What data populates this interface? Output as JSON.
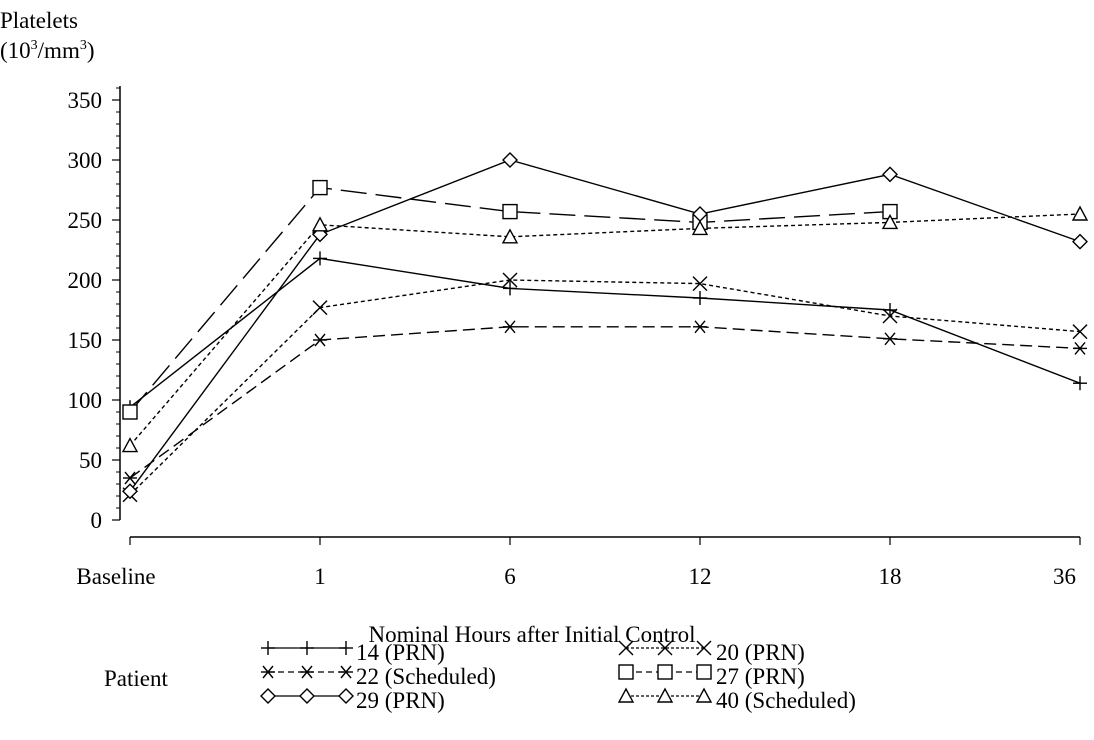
{
  "chart_data": {
    "type": "line",
    "ylabel_line1": "Platelets",
    "ylabel_line2_base": "(10",
    "ylabel_line2_exp": "3",
    "ylabel_line2_mid": "/mm",
    "ylabel_line2_exp2": "3",
    "ylabel_line2_end": ")",
    "xlabel": "Nominal Hours after Initial Control",
    "categories": [
      "Baseline",
      "1",
      "6",
      "12",
      "18",
      "36"
    ],
    "ylim": [
      0,
      350
    ],
    "yticks": [
      0,
      50,
      100,
      150,
      200,
      250,
      300,
      350
    ],
    "legend_title": "Patient",
    "legend_placement": "bottom",
    "series": [
      {
        "name": "14 (PRN)",
        "marker": "plus",
        "dash": "solid",
        "values": [
          94,
          218,
          193,
          185,
          175,
          114
        ]
      },
      {
        "name": "20 (PRN)",
        "marker": "x",
        "dash": "dotted",
        "values": [
          21,
          177,
          200,
          197,
          170,
          157
        ]
      },
      {
        "name": "22 (Scheduled)",
        "marker": "asterisk",
        "dash": "dashed",
        "values": [
          35,
          150,
          161,
          161,
          151,
          143
        ]
      },
      {
        "name": "27 (PRN)",
        "marker": "square",
        "dash": "longdash",
        "values": [
          90,
          277,
          257,
          248,
          257,
          null
        ]
      },
      {
        "name": "29 (PRN)",
        "marker": "diamond",
        "dash": "solid",
        "values": [
          24,
          238,
          300,
          255,
          288,
          232
        ]
      },
      {
        "name": "40 (Scheduled)",
        "marker": "triangle",
        "dash": "dotted",
        "values": [
          62,
          246,
          236,
          243,
          248,
          255
        ]
      }
    ]
  }
}
